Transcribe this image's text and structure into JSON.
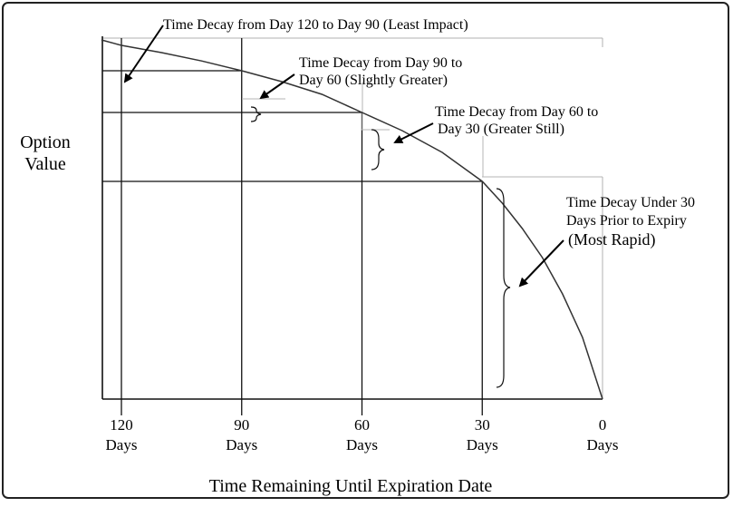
{
  "chart_data": {
    "type": "line",
    "title": "",
    "xlabel": "Time Remaining Until Expiration Date",
    "ylabel": [
      "Option",
      "Value"
    ],
    "x_reversed": true,
    "xlim": [
      120,
      0
    ],
    "ticks": [
      {
        "value": 120,
        "line1": "120",
        "line2": "Days"
      },
      {
        "value": 90,
        "line1": "90",
        "line2": "Days"
      },
      {
        "value": 60,
        "line1": "60",
        "line2": "Days"
      },
      {
        "value": 30,
        "line1": "30",
        "line2": "Days"
      },
      {
        "value": 0,
        "line1": "0",
        "line2": "Days"
      }
    ],
    "series": [
      {
        "x": [
          125,
          120,
          110,
          100,
          90,
          80,
          70,
          60,
          50,
          40,
          30,
          25,
          20,
          15,
          10,
          5,
          0
        ],
        "y": [
          0.99,
          0.975,
          0.955,
          0.932,
          0.905,
          0.875,
          0.84,
          0.79,
          0.74,
          0.68,
          0.6,
          0.54,
          0.47,
          0.39,
          0.29,
          0.17,
          0.0
        ]
      }
    ],
    "annotations": [
      {
        "lines": [
          "Time Decay from Day 120 to Day 90 (Least Impact)"
        ]
      },
      {
        "lines": [
          "Time Decay from Day 90 to",
          "Day 60 (Slightly Greater)"
        ]
      },
      {
        "lines": [
          "Time Decay from Day 60 to",
          "Day 30 (Greater Still)"
        ]
      },
      {
        "lines": [
          "Time Decay Under 30",
          "Days Prior to Expiry",
          "(Most Rapid)"
        ]
      }
    ]
  }
}
